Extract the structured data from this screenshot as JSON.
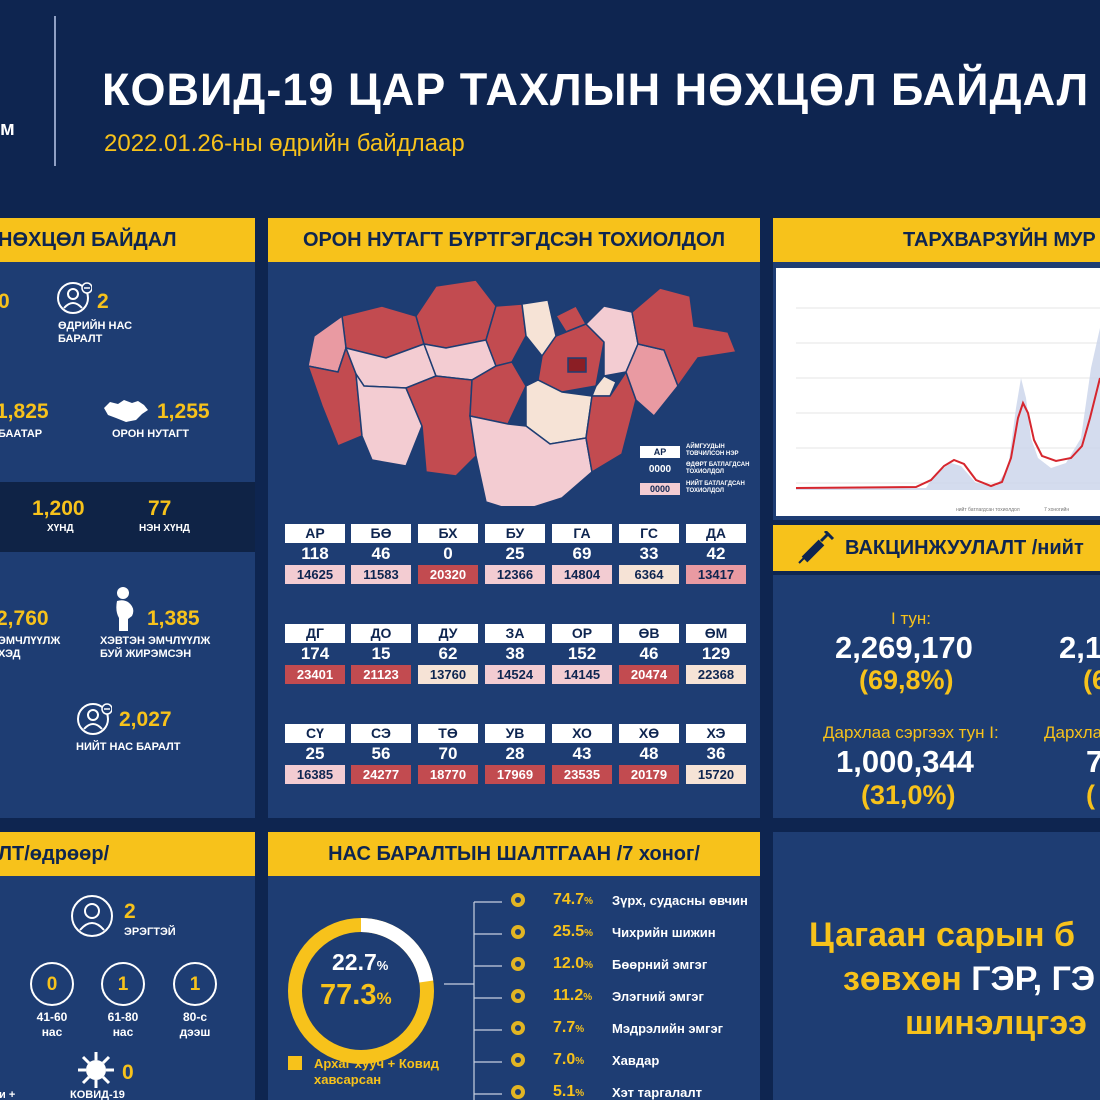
{
  "header": {
    "title": "КОВИД-19 ЦАР ТАХЛЫН НӨХЦӨЛ БАЙДАЛ",
    "subtitle": "2022.01.26-ны өдрийн байдлаар",
    "logo_fragment": "м"
  },
  "situation": {
    "heading": "НӨХЦӨЛ БАЙДАЛ",
    "top_left_value": "0",
    "daily_deaths_value": "2",
    "daily_deaths_label_1": "ӨДРИЙН НАС",
    "daily_deaths_label_2": "БАРАЛТ",
    "ub_value": "1,825",
    "ub_label": "БААТАР",
    "rural_value": "1,255",
    "rural_label": "ОРОН НУТАГТ",
    "severe_value": "1,200",
    "severe_label": "ХҮНД",
    "critical_value": "77",
    "critical_label": "НЭН ХҮНД",
    "hosp_value": "2,760",
    "hosp_label_1": "ЭМЧЛҮҮЛЖ",
    "hosp_label_2": "ХЭД",
    "pregnant_value": "1,385",
    "pregnant_label_1": "ХЭВТЭН ЭМЧЛҮҮЛЖ",
    "pregnant_label_2": "БУЙ ЖИРЭМСЭН",
    "total_deaths_value": "2,027",
    "total_deaths_label": "НИЙТ НАС БАРАЛТ"
  },
  "regional": {
    "heading": "ОРОН НУТАГТ БҮРТГЭГДСЭН ТОХИОЛДОЛ",
    "legend_code": "АР",
    "legend_code_text_1": "АЙМГУУДЫН",
    "legend_code_text_2": "ТОВЧИЛСОН НЭР",
    "legend_daily": "0000",
    "legend_daily_text_1": "ӨДӨРТ БАТЛАГДСАН",
    "legend_daily_text_2": "ТОХИОЛДОЛ",
    "legend_total": "0000",
    "legend_total_text_1": "НИЙТ БАТЛАГДСАН",
    "legend_total_text_2": "ТОХИОЛДОЛ",
    "rows": [
      [
        {
          "code": "АР",
          "daily": "118",
          "total": "14625",
          "color": "#f3ccd2"
        },
        {
          "code": "БӨ",
          "daily": "46",
          "total": "11583",
          "color": "#f3ccd2"
        },
        {
          "code": "БХ",
          "daily": "0",
          "total": "20320",
          "color": "#c24b50"
        },
        {
          "code": "БУ",
          "daily": "25",
          "total": "12366",
          "color": "#f3ccd2"
        },
        {
          "code": "ГА",
          "daily": "69",
          "total": "14804",
          "color": "#f3ccd2"
        },
        {
          "code": "ГС",
          "daily": "33",
          "total": "6364",
          "color": "#f6e3d6"
        },
        {
          "code": "ДА",
          "daily": "42",
          "total": "13417",
          "color": "#e99aa2"
        }
      ],
      [
        {
          "code": "ДГ",
          "daily": "174",
          "total": "23401",
          "color": "#c24b50"
        },
        {
          "code": "ДО",
          "daily": "15",
          "total": "21123",
          "color": "#c24b50"
        },
        {
          "code": "ДУ",
          "daily": "62",
          "total": "13760",
          "color": "#f6e3d6"
        },
        {
          "code": "ЗА",
          "daily": "38",
          "total": "14524",
          "color": "#f3ccd2"
        },
        {
          "code": "ОР",
          "daily": "152",
          "total": "14145",
          "color": "#f3ccd2"
        },
        {
          "code": "ӨВ",
          "daily": "46",
          "total": "20474",
          "color": "#c24b50"
        },
        {
          "code": "ӨМ",
          "daily": "129",
          "total": "22368",
          "color": "#f6e3d6"
        }
      ],
      [
        {
          "code": "СҮ",
          "daily": "25",
          "total": "16385",
          "color": "#f3ccd2"
        },
        {
          "code": "СЭ",
          "daily": "56",
          "total": "24277",
          "color": "#c24b50"
        },
        {
          "code": "ТӨ",
          "daily": "70",
          "total": "18770",
          "color": "#c24b50"
        },
        {
          "code": "УВ",
          "daily": "28",
          "total": "17969",
          "color": "#c24b50"
        },
        {
          "code": "ХО",
          "daily": "43",
          "total": "23535",
          "color": "#c24b50"
        },
        {
          "code": "ХӨ",
          "daily": "48",
          "total": "20179",
          "color": "#c24b50"
        },
        {
          "code": "ХЭ",
          "daily": "36",
          "total": "15720",
          "color": "#f6e3d6"
        }
      ]
    ]
  },
  "trend": {
    "heading": "ТАРХВАРЗҮЙН МУР"
  },
  "vaccination": {
    "heading": "ВАКЦИНЖУУЛАЛТ /нийт",
    "dose1_label": "I тун:",
    "dose1_value": "2,269,170",
    "dose1_pct": "(69,8%)",
    "dose2_value_frag": "2,1",
    "dose2_pct_frag": "(6",
    "booster1_label": "Дархлаа сэргээх тун I:",
    "booster1_value": "1,000,344",
    "booster1_pct": "(31,0%)",
    "booster2_label_frag": "Дархла",
    "booster2_value_frag": "7",
    "booster2_pct_frag": "("
  },
  "daily_deaths": {
    "heading": "ЛТ/өдрөөр/",
    "male_value": "2",
    "male_label": "ЭРЭГТЭЙ",
    "age_groups": [
      {
        "value": "0",
        "label_1": "41-60",
        "label_2": "нас"
      },
      {
        "value": "1",
        "label_1": "61-80",
        "label_2": "нас"
      },
      {
        "value": "1",
        "label_1": "80-с",
        "label_2": "дээш"
      }
    ],
    "covid_value": "0",
    "covid_label": "КОВИД-19",
    "partial_label": "и +"
  },
  "causes": {
    "heading": "НАС БАРАЛТЫН ШАЛТГААН /7 хоног/",
    "donut_inner": "22.7",
    "donut_outer": "77.3",
    "pct_sign": "%",
    "legend_label_1": "Архаг хууч + Ковид",
    "legend_label_2": "хавсарсан",
    "items": [
      {
        "pct": "74.7",
        "label": "Зүрх, судасны өвчин"
      },
      {
        "pct": "25.5",
        "label": "Чихрийн шижин"
      },
      {
        "pct": "12.0",
        "label": "Бөөрний эмгэг"
      },
      {
        "pct": "11.2",
        "label": "Элэгний эмгэг"
      },
      {
        "pct": "7.7",
        "label": "Мэдрэлийн эмгэг"
      },
      {
        "pct": "7.0",
        "label": "Хавдар"
      },
      {
        "pct": "5.1",
        "label": "Хэт таргалалт"
      }
    ]
  },
  "message": {
    "line1": "Цагаан сарын б",
    "line2_a": "зөвхөн ",
    "line2_b": "ГЭР, ГЭ",
    "line3": "шинэлцгээ"
  },
  "colors": {
    "background": "#0e2550",
    "panel": "#1e3d73",
    "accent": "#f7c21b",
    "map_dark": "#c24b50",
    "map_mid": "#e99aa2",
    "map_light": "#f3ccd2",
    "map_pale": "#f6e3d6"
  },
  "icons": [
    "person-minus-icon",
    "mongolia-map-icon",
    "pregnant-woman-icon",
    "syringe-icon",
    "virus-icon",
    "heart-icon",
    "kidney-icon",
    "liver-icon",
    "brain-icon",
    "tumor-icon",
    "person-icon"
  ]
}
